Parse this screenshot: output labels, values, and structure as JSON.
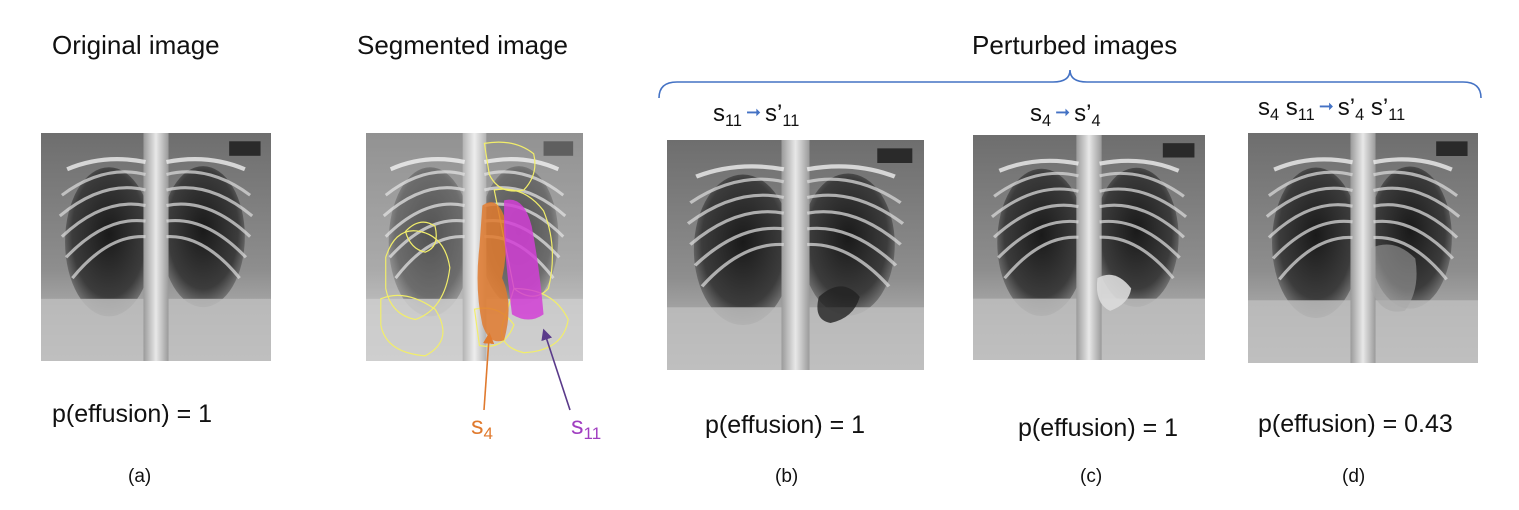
{
  "headings": {
    "original": "Original image",
    "segmented": "Segmented image",
    "perturbed": "Perturbed images"
  },
  "segment_labels": {
    "s4": {
      "base": "s",
      "sub": "4",
      "color": "#e07a2e"
    },
    "s11": {
      "base": "s",
      "sub": "11",
      "color": "#a13fc1"
    }
  },
  "formulas": {
    "b": {
      "lhs_base": "s",
      "lhs_sub": "11",
      "rhs_base": "s’",
      "rhs_sub": "11"
    },
    "c": {
      "lhs_base": "s",
      "lhs_sub": "4",
      "rhs_base": "s’",
      "rhs_sub": "4"
    },
    "d": {
      "lhs1_base": "s",
      "lhs1_sub": "4",
      "lhs2_base": "s",
      "lhs2_sub": "11",
      "rhs1_base": "s’",
      "rhs1_sub": "4",
      "rhs2_base": "s’",
      "rhs2_sub": "11"
    }
  },
  "probabilities": {
    "a": "p(effusion) = 1",
    "b": "p(effusion) = 1",
    "c": "p(effusion) = 1",
    "d": "p(effusion) = 0.43"
  },
  "panel_labels": {
    "a": "(a)",
    "b": "(b)",
    "c": "(c)",
    "d": "(d)"
  },
  "colors": {
    "brace": "#4472c4",
    "arrow": "#4472c4",
    "contour": "#f2ee6a",
    "s4_fill": "#e07a2e",
    "s11_fill": "#d23fd6"
  }
}
